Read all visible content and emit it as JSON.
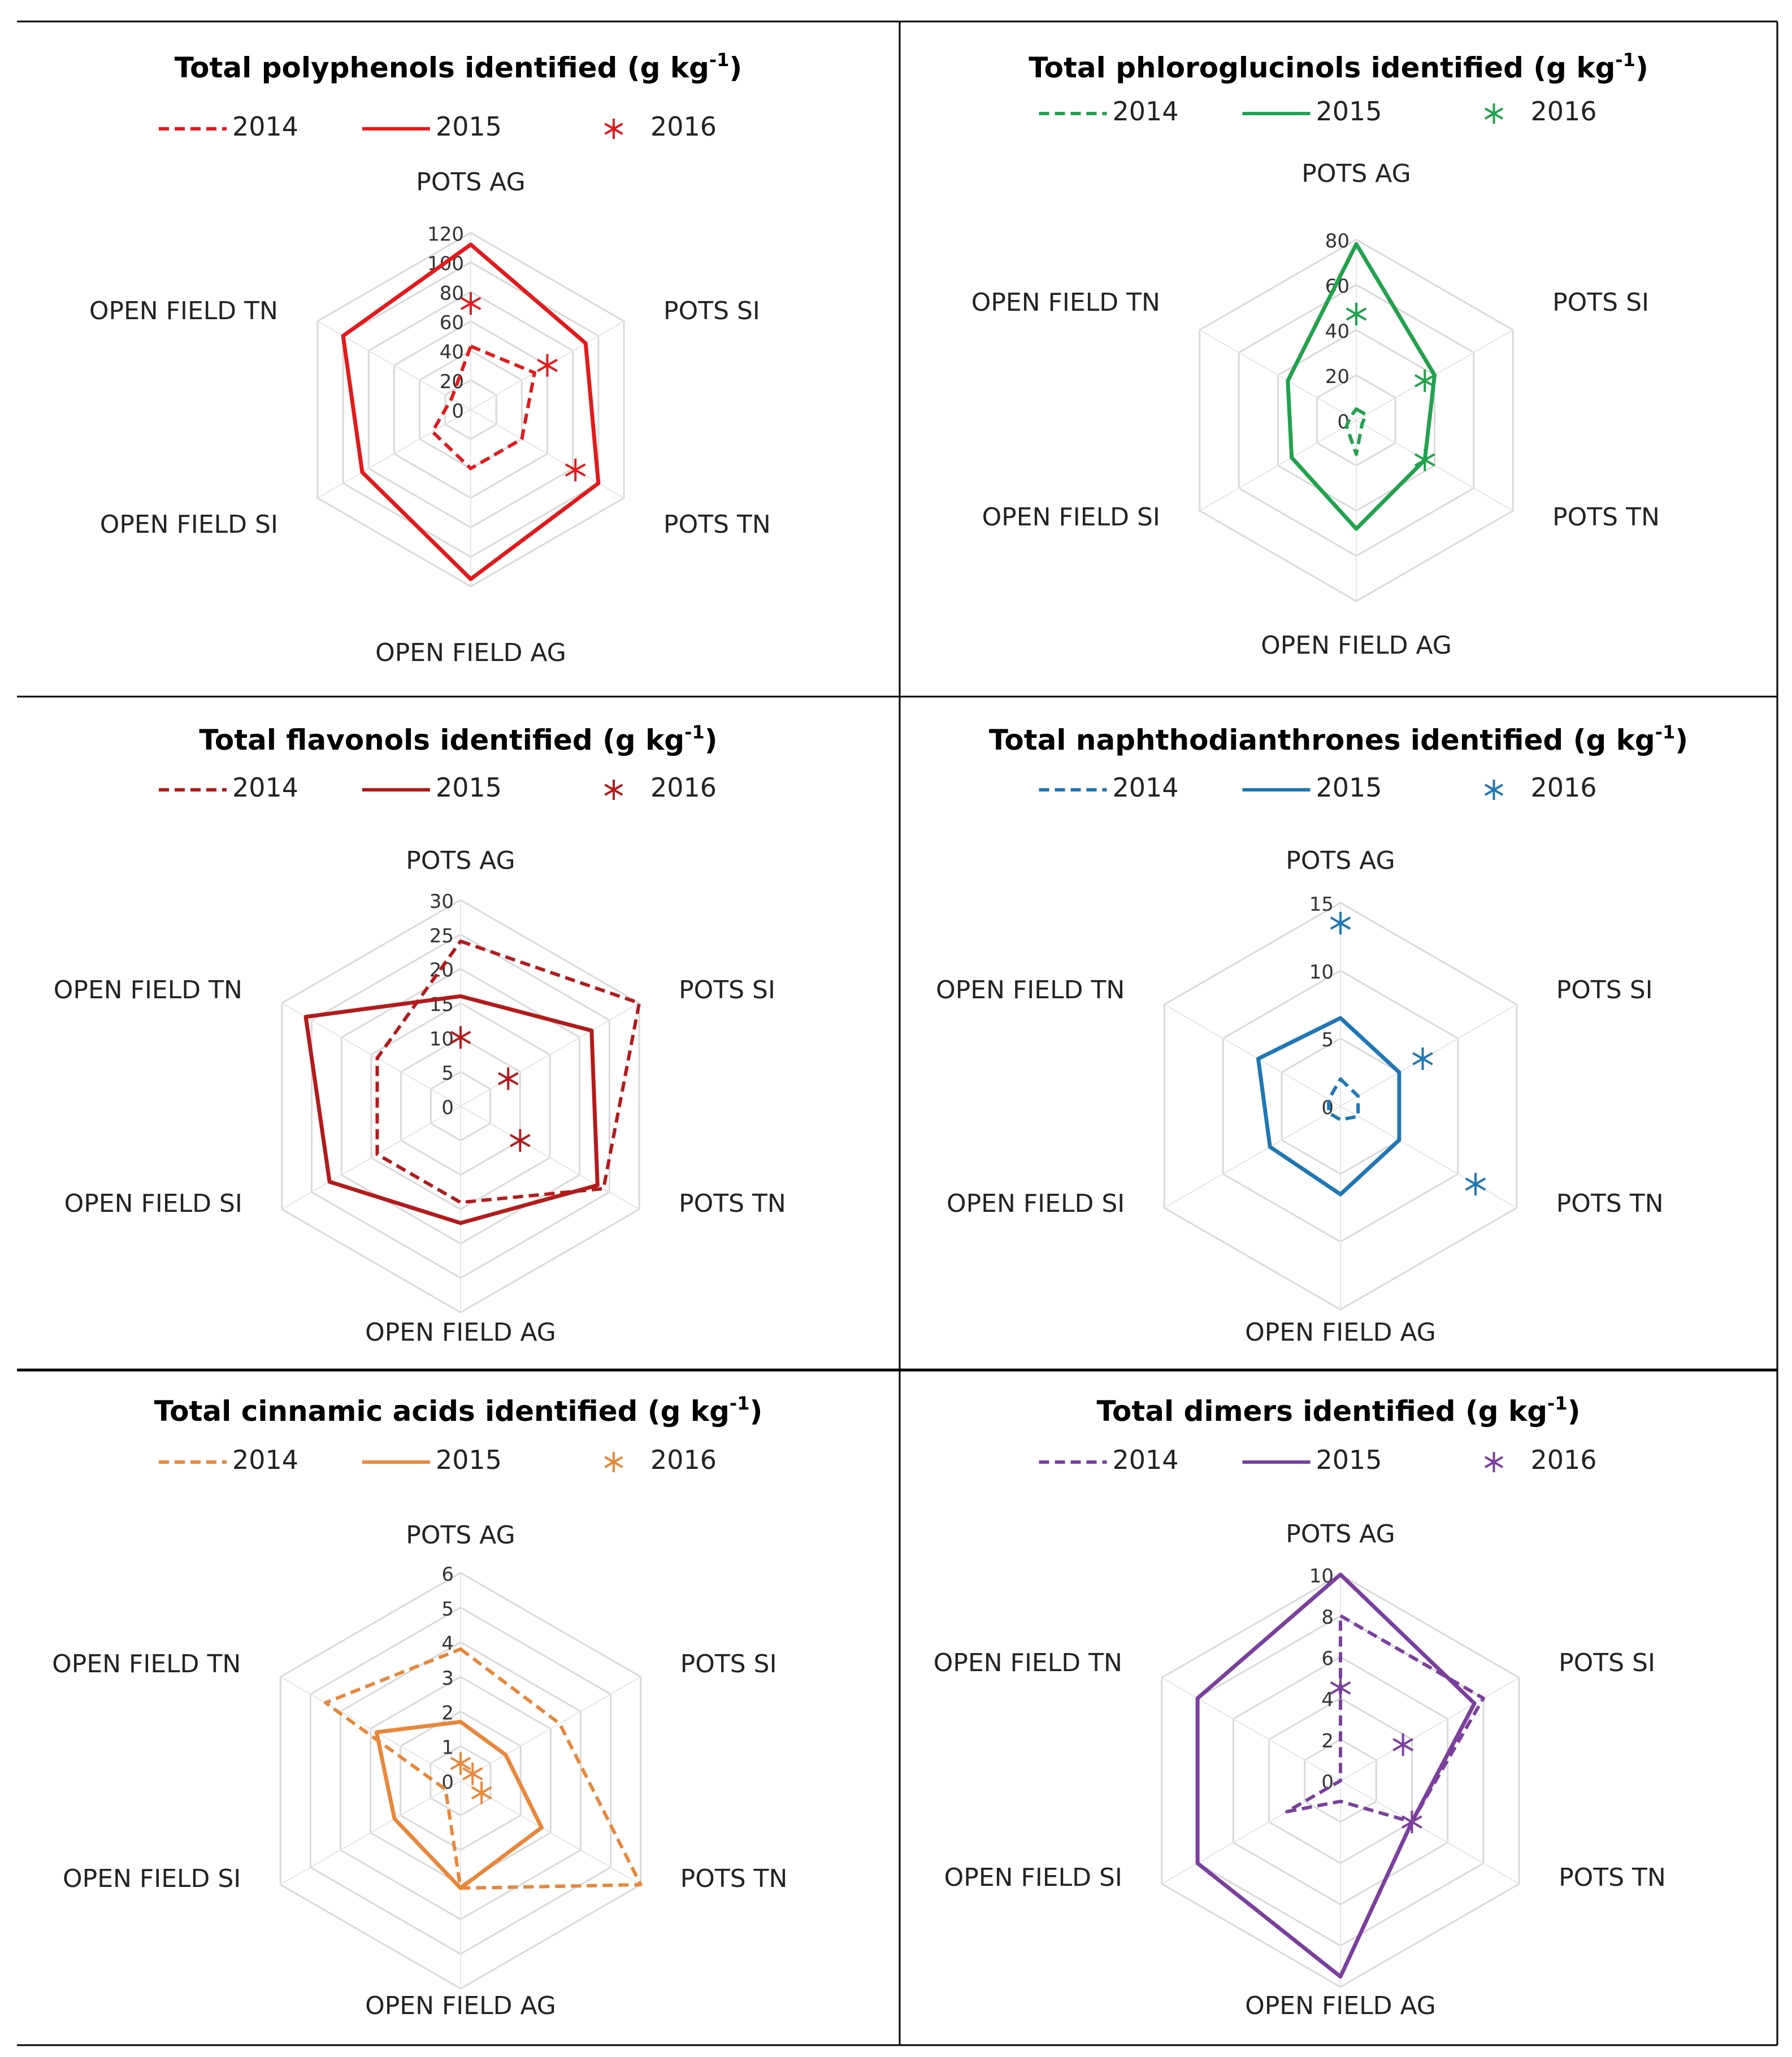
{
  "chart_data": [
    {
      "type": "radar",
      "title": "Total polyphenols identified (g kg-1)",
      "color": "#e31a1c",
      "axes": [
        "POTS AG",
        "POTS SI",
        "POTS TN",
        "OPEN FIELD AG",
        "OPEN FIELD SI",
        "OPEN FIELD TN"
      ],
      "ticks": [
        "0",
        "20",
        "40",
        "60",
        "80",
        "100",
        "120"
      ],
      "rmax": 120,
      "series": [
        {
          "name": "2014",
          "style": "dashed",
          "values": [
            43,
            50,
            40,
            40,
            30,
            15
          ]
        },
        {
          "name": "2015",
          "style": "solid",
          "values": [
            112,
            90,
            100,
            115,
            85,
            100
          ]
        },
        {
          "name": "2016",
          "style": "marker",
          "values": [
            72,
            60,
            82,
            null,
            null,
            null
          ]
        }
      ]
    },
    {
      "type": "radar",
      "title": "Total phloroglucinols identified (g kg-1)",
      "color": "#21a24d",
      "axes": [
        "POTS AG",
        "POTS SI",
        "POTS TN",
        "OPEN FIELD AG",
        "OPEN FIELD SI",
        "OPEN FIELD TN"
      ],
      "ticks": [
        "0",
        "20",
        "40",
        "60",
        "80"
      ],
      "rmax": 80,
      "series": [
        {
          "name": "2014",
          "style": "dashed",
          "values": [
            5,
            5,
            3,
            15,
            5,
            3
          ]
        },
        {
          "name": "2015",
          "style": "solid",
          "values": [
            78,
            40,
            35,
            48,
            33,
            35
          ]
        },
        {
          "name": "2016",
          "style": "marker",
          "values": [
            47,
            35,
            35,
            null,
            null,
            null
          ]
        }
      ]
    },
    {
      "type": "radar",
      "title": "Total flavonols identified (g kg-1)",
      "color": "#b31b1b",
      "axes": [
        "POTS AG",
        "POTS SI",
        "POTS TN",
        "OPEN FIELD AG",
        "OPEN FIELD SI",
        "OPEN FIELD TN"
      ],
      "ticks": [
        "0",
        "5",
        "10",
        "15",
        "20",
        "25",
        "30"
      ],
      "rmax": 30,
      "series": [
        {
          "name": "2014",
          "style": "dashed",
          "values": [
            24,
            30,
            24,
            14,
            14,
            14
          ]
        },
        {
          "name": "2015",
          "style": "solid",
          "values": [
            16,
            22,
            23,
            17,
            22,
            26
          ]
        },
        {
          "name": "2016",
          "style": "marker",
          "values": [
            10,
            8,
            10,
            null,
            null,
            null
          ]
        }
      ]
    },
    {
      "type": "radar",
      "title": "Total naphthodianthrones identified (g kg-1)",
      "color": "#1f77b4",
      "axes": [
        "POTS AG",
        "POTS SI",
        "POTS TN",
        "OPEN FIELD AG",
        "OPEN FIELD SI",
        "OPEN FIELD TN"
      ],
      "ticks": [
        "0",
        "5",
        "10",
        "15"
      ],
      "rmax": 15,
      "series": [
        {
          "name": "2014",
          "style": "dashed",
          "values": [
            2,
            1.5,
            1.5,
            1,
            1,
            1
          ]
        },
        {
          "name": "2015",
          "style": "solid",
          "values": [
            6.5,
            5,
            5,
            6.5,
            6,
            7
          ]
        },
        {
          "name": "2016",
          "style": "marker",
          "values": [
            13.5,
            7,
            11.5,
            null,
            null,
            null
          ]
        }
      ]
    },
    {
      "type": "radar",
      "title": "Total cinnamic acids identified (g kg-1)",
      "color": "#e8873a",
      "axes": [
        "POTS AG",
        "POTS SI",
        "POTS TN",
        "OPEN FIELD AG",
        "OPEN FIELD SI",
        "OPEN FIELD TN"
      ],
      "ticks": [
        "0",
        "1",
        "2",
        "3",
        "4",
        "5",
        "6"
      ],
      "rmax": 6,
      "series": [
        {
          "name": "2014",
          "style": "dashed",
          "values": [
            3.8,
            3.3,
            6,
            3.1,
            0.5,
            4.5
          ]
        },
        {
          "name": "2015",
          "style": "solid",
          "values": [
            1.7,
            1.5,
            2.7,
            3.1,
            2.2,
            2.8
          ]
        },
        {
          "name": "2016",
          "style": "marker",
          "values": [
            0.5,
            0.4,
            0.7,
            null,
            null,
            null
          ]
        }
      ]
    },
    {
      "type": "radar",
      "title": "Total dimers identified (g kg-1)",
      "color": "#7b3f9e",
      "axes": [
        "POTS AG",
        "POTS SI",
        "POTS TN",
        "OPEN FIELD AG",
        "OPEN FIELD SI",
        "OPEN FIELD TN"
      ],
      "ticks": [
        "0",
        "2",
        "4",
        "6",
        "8",
        "10"
      ],
      "rmax": 10,
      "series": [
        {
          "name": "2014",
          "style": "dashed",
          "values": [
            8,
            8,
            4,
            1,
            3,
            0
          ]
        },
        {
          "name": "2015",
          "style": "solid",
          "values": [
            10,
            7.5,
            4,
            9.5,
            8,
            8
          ]
        },
        {
          "name": "2016",
          "style": "marker",
          "values": [
            4.5,
            3.5,
            4,
            null,
            null,
            null
          ]
        }
      ]
    }
  ]
}
